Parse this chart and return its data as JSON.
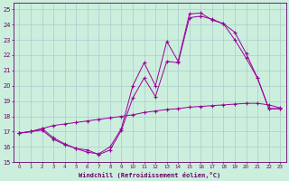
{
  "xlabel": "Windchill (Refroidissement éolien,°C)",
  "background_color": "#cceedd",
  "grid_color": "#aacccc",
  "line_color": "#990099",
  "xlim": [
    -0.5,
    23.5
  ],
  "ylim": [
    15,
    25.4
  ],
  "xticks": [
    0,
    1,
    2,
    3,
    4,
    5,
    6,
    7,
    8,
    9,
    10,
    11,
    12,
    13,
    14,
    15,
    16,
    17,
    18,
    19,
    20,
    21,
    22,
    23
  ],
  "yticks": [
    15,
    16,
    17,
    18,
    19,
    20,
    21,
    22,
    23,
    24,
    25
  ],
  "series1_x": [
    0,
    1,
    2,
    3,
    4,
    5,
    6,
    7,
    8,
    9,
    10,
    11,
    12,
    13,
    14,
    15,
    16,
    17,
    18,
    19,
    20,
    21,
    22,
    23
  ],
  "series1_y": [
    16.9,
    17.0,
    17.2,
    17.4,
    17.5,
    17.6,
    17.7,
    17.8,
    17.9,
    18.0,
    18.1,
    18.25,
    18.35,
    18.45,
    18.5,
    18.6,
    18.65,
    18.7,
    18.75,
    18.8,
    18.85,
    18.85,
    18.75,
    18.55
  ],
  "series2_x": [
    0,
    1,
    2,
    3,
    4,
    5,
    6,
    7,
    8,
    9,
    10,
    11,
    12,
    13,
    14,
    15,
    16,
    17,
    18,
    19,
    20,
    21,
    22,
    23
  ],
  "series2_y": [
    16.9,
    17.0,
    17.2,
    16.6,
    16.2,
    15.9,
    15.8,
    15.5,
    15.8,
    17.1,
    19.2,
    20.5,
    19.3,
    21.6,
    21.5,
    24.45,
    24.55,
    24.35,
    24.05,
    23.0,
    21.8,
    20.5,
    18.5,
    18.5
  ],
  "series3_x": [
    0,
    1,
    2,
    3,
    4,
    5,
    6,
    7,
    8,
    9,
    10,
    11,
    12,
    13,
    14,
    15,
    16,
    17,
    18,
    19,
    20,
    21,
    22,
    23
  ],
  "series3_y": [
    16.9,
    17.0,
    17.1,
    16.5,
    16.15,
    15.9,
    15.65,
    15.55,
    16.0,
    17.2,
    20.0,
    21.5,
    20.0,
    22.9,
    21.6,
    24.7,
    24.75,
    24.3,
    24.05,
    23.5,
    22.1,
    20.5,
    18.5,
    18.5
  ]
}
